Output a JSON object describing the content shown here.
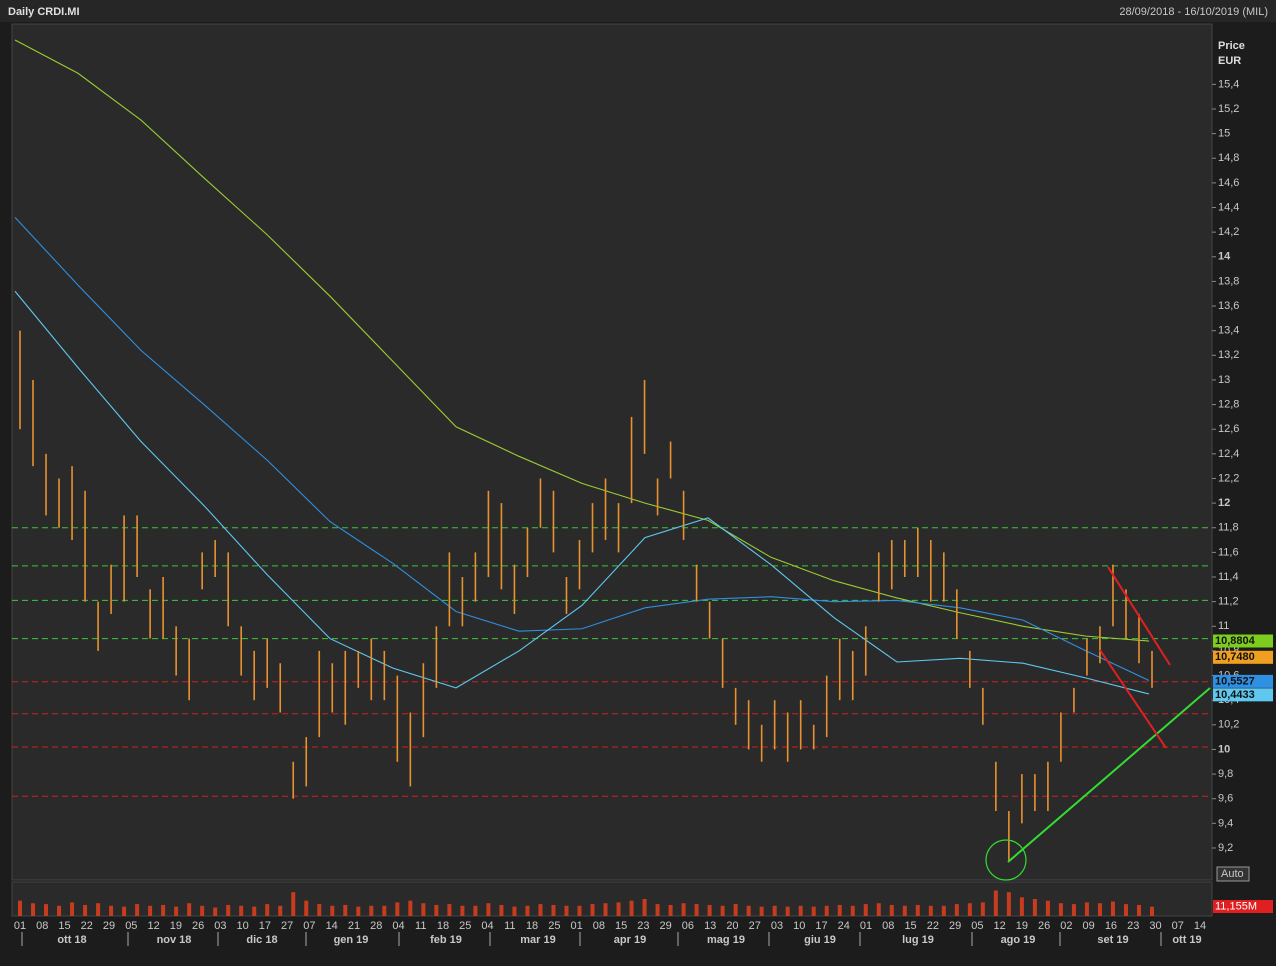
{
  "chart_data": {
    "type": "ohlc",
    "title": "Daily CRDI.MI",
    "date_range": "28/09/2018 - 16/10/2019 (MIL)",
    "y_label_1": "Price",
    "y_label_2": "EUR",
    "auto_label": "Auto",
    "ylim": [
      8.94,
      15.89
    ],
    "yticks": [
      {
        "value": 9.2,
        "label": "9,2"
      },
      {
        "value": 9.4,
        "label": "9,4"
      },
      {
        "value": 9.6,
        "label": "9,6"
      },
      {
        "value": 9.8,
        "label": "9,8"
      },
      10,
      {
        "value": 10.2,
        "label": "10,2"
      },
      {
        "value": 10.4,
        "label": "10,4"
      },
      {
        "value": 10.6,
        "label": "10,6"
      },
      {
        "value": 10.8,
        "label": "10,8"
      },
      11,
      {
        "value": 11.2,
        "label": "11,2"
      },
      {
        "value": 11.4,
        "label": "11,4"
      },
      {
        "value": 11.6,
        "label": "11,6"
      },
      {
        "value": 11.8,
        "label": "11,8"
      },
      12,
      {
        "value": 12.2,
        "label": "12,2"
      },
      {
        "value": 12.4,
        "label": "12,4"
      },
      {
        "value": 12.6,
        "label": "12,6"
      },
      {
        "value": 12.8,
        "label": "12,8"
      },
      13,
      {
        "value": 13.2,
        "label": "13,2"
      },
      {
        "value": 13.4,
        "label": "13,4"
      },
      {
        "value": 13.6,
        "label": "13,6"
      },
      {
        "value": 13.8,
        "label": "13,8"
      },
      14,
      {
        "value": 14.2,
        "label": "14,2"
      },
      {
        "value": 14.4,
        "label": "14,4"
      },
      {
        "value": 14.6,
        "label": "14,6"
      },
      {
        "value": 14.8,
        "label": "14,8"
      },
      15,
      {
        "value": 15.2,
        "label": "15,2"
      },
      {
        "value": 15.4,
        "label": "15,4"
      }
    ],
    "color": "#e8922e",
    "high": [
      13.4,
      13.0,
      12.4,
      12.2,
      12.3,
      12.1,
      11.2,
      11.5,
      11.9,
      11.9,
      11.3,
      11.4,
      11.0,
      10.9,
      11.6,
      11.7,
      11.6,
      11.0,
      10.8,
      10.9,
      10.7,
      9.9,
      10.1,
      10.8,
      10.7,
      10.8,
      10.8,
      10.9,
      10.8,
      10.6,
      10.3,
      10.7,
      11.0,
      11.6,
      11.4,
      11.6,
      12.1,
      12.0,
      11.5,
      11.8,
      12.2,
      12.1,
      11.4,
      11.7,
      12.0,
      12.2,
      12.0,
      12.7,
      13.0,
      12.2,
      12.5,
      12.1,
      11.5,
      11.2,
      10.9,
      10.5,
      10.4,
      10.2,
      10.4,
      10.3,
      10.4,
      10.2,
      10.6,
      10.9,
      10.8,
      11.0,
      11.6,
      11.7,
      11.7,
      11.8,
      11.7,
      11.6,
      11.3,
      10.8,
      10.5,
      9.9,
      9.5,
      9.8,
      9.8,
      9.9,
      10.3,
      10.5,
      10.9,
      11.0,
      11.5,
      11.3,
      11.1,
      10.8
    ],
    "low": [
      12.6,
      12.3,
      11.9,
      11.8,
      11.7,
      11.2,
      10.8,
      11.1,
      11.2,
      11.4,
      10.9,
      10.9,
      10.6,
      10.4,
      11.3,
      11.4,
      11.0,
      10.6,
      10.4,
      10.5,
      10.3,
      9.6,
      9.7,
      10.1,
      10.3,
      10.2,
      10.5,
      10.4,
      10.4,
      9.9,
      9.7,
      10.1,
      10.5,
      11.0,
      11.0,
      11.2,
      11.4,
      11.3,
      11.1,
      11.4,
      11.8,
      11.6,
      11.1,
      11.3,
      11.6,
      11.7,
      11.6,
      12.0,
      12.4,
      11.9,
      12.2,
      11.7,
      11.2,
      10.9,
      10.5,
      10.2,
      10.0,
      9.9,
      10.0,
      9.9,
      10.0,
      10.0,
      10.1,
      10.4,
      10.4,
      10.6,
      11.2,
      11.3,
      11.4,
      11.4,
      11.2,
      11.2,
      10.9,
      10.5,
      10.2,
      9.5,
      9.1,
      9.4,
      9.5,
      9.5,
      9.9,
      10.3,
      10.6,
      10.7,
      11.0,
      10.9,
      10.7,
      10.5
    ],
    "moving_averages": [
      {
        "color": "#9acd32",
        "values": [
          15.76,
          15.49,
          15.11,
          14.64,
          14.18,
          13.68,
          13.15,
          12.62,
          12.38,
          12.16,
          12.0,
          11.86,
          11.56,
          11.37,
          11.23,
          11.11,
          11.0,
          10.92,
          10.88
        ]
      },
      {
        "color": "#2f8fe0",
        "values": [
          14.32,
          13.77,
          13.24,
          12.8,
          12.35,
          11.85,
          11.51,
          11.12,
          10.96,
          10.98,
          11.15,
          11.22,
          11.24,
          11.2,
          11.21,
          11.15,
          11.05,
          10.8,
          10.56
        ]
      },
      {
        "color": "#5ec8f0",
        "values": [
          13.72,
          13.1,
          12.5,
          11.98,
          11.42,
          10.9,
          10.66,
          10.5,
          10.8,
          11.17,
          11.72,
          11.88,
          11.5,
          11.07,
          10.71,
          10.74,
          10.7,
          10.58,
          10.45
        ]
      }
    ],
    "levels": [
      {
        "value": 11.8,
        "color": "#3cc83c"
      },
      {
        "value": 11.49,
        "color": "#3cc83c"
      },
      {
        "value": 11.21,
        "color": "#3cc83c"
      },
      {
        "value": 10.9,
        "color": "#3cc83c"
      },
      {
        "value": 10.55,
        "color": "#d02020"
      },
      {
        "value": 10.29,
        "color": "#d02020"
      },
      {
        "value": 10.02,
        "color": "#d02020"
      },
      {
        "value": 9.62,
        "color": "#d02020"
      }
    ],
    "last_values": [
      {
        "value": 10.8804,
        "label": "10,8804",
        "color": "#7ccd1e"
      },
      {
        "value": 10.748,
        "label": "10,7480",
        "color": "#f0a020"
      },
      {
        "value": 10.5527,
        "label": "10,5527",
        "color": "#2f8fe0"
      },
      {
        "value": 10.4433,
        "label": "10,4433",
        "color": "#5ec8f0"
      }
    ],
    "xtick_labels": [
      "01",
      "08",
      "15",
      "22",
      "29",
      "05",
      "12",
      "19",
      "26",
      "03",
      "10",
      "17",
      "27",
      "07",
      "14",
      "21",
      "28",
      "04",
      "11",
      "18",
      "25",
      "04",
      "11",
      "18",
      "25",
      "01",
      "08",
      "15",
      "23",
      "29",
      "06",
      "13",
      "20",
      "27",
      "03",
      "10",
      "17",
      "24",
      "01",
      "08",
      "15",
      "22",
      "29",
      "05",
      "12",
      "19",
      "26",
      "02",
      "09",
      "16",
      "23",
      "30",
      "07",
      "14"
    ],
    "month_labels": [
      "ott 18",
      "nov 18",
      "dic 18",
      "gen 19",
      "feb 19",
      "mar 19",
      "apr 19",
      "mag 19",
      "giu 19",
      "lug 19",
      "ago 19",
      "set 19",
      "ott 19"
    ],
    "volume": {
      "color": "#c83c1e",
      "ylim": [
        0,
        40
      ],
      "values": [
        18,
        15,
        14,
        12,
        16,
        13,
        15,
        12,
        11,
        14,
        12,
        13,
        11,
        15,
        12,
        10,
        13,
        12,
        11,
        14,
        12,
        28,
        18,
        14,
        12,
        13,
        11,
        12,
        12,
        16,
        18,
        15,
        13,
        14,
        12,
        12,
        15,
        13,
        11,
        12,
        14,
        13,
        12,
        12,
        14,
        15,
        16,
        18,
        20,
        14,
        13,
        15,
        14,
        13,
        12,
        14,
        12,
        11,
        12,
        11,
        12,
        11,
        12,
        13,
        12,
        14,
        15,
        13,
        12,
        13,
        12,
        12,
        14,
        15,
        16,
        30,
        28,
        22,
        20,
        18,
        15,
        14,
        16,
        15,
        17,
        14,
        13,
        11
      ],
      "last": {
        "value": 11.155,
        "label": "11,155M"
      }
    }
  }
}
